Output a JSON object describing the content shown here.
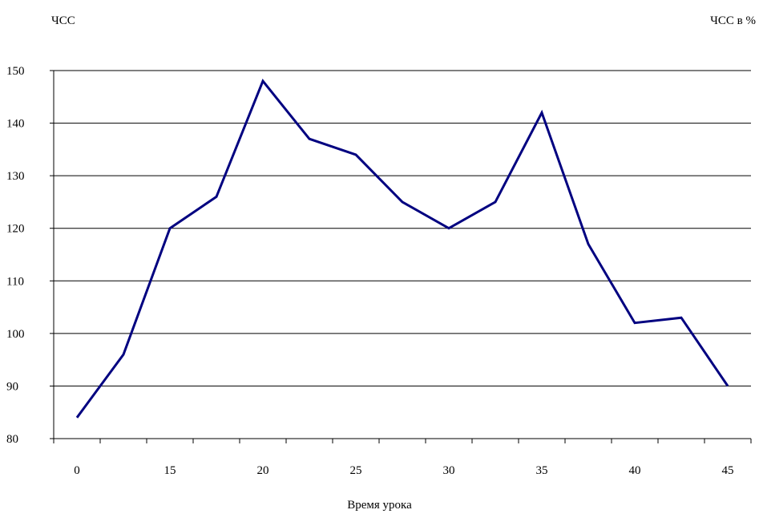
{
  "chart_data": {
    "type": "line",
    "ylabel_left": "ЧСС",
    "ylabel_right": "ЧСС в %",
    "xlabel": "Время урока",
    "ylim": [
      80,
      150
    ],
    "yticks": [
      80,
      90,
      100,
      110,
      120,
      130,
      140,
      150
    ],
    "ytick_labels": [
      "80",
      "90",
      "100",
      "110",
      "120",
      "130",
      "140",
      "150"
    ],
    "xtick_labels": [
      "0",
      "15",
      "20",
      "25",
      "30",
      "35",
      "40",
      "45"
    ],
    "grid": true,
    "series": [
      {
        "values": [
          84,
          96,
          120,
          126,
          148,
          137,
          134,
          125,
          120,
          125,
          142,
          117,
          102,
          103,
          90
        ]
      }
    ],
    "colors": {
      "line": "#000080",
      "grid": "#000000"
    }
  }
}
